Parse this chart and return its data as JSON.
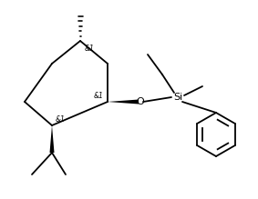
{
  "bg_color": "#ffffff",
  "line_color": "#000000",
  "line_width": 1.3,
  "font_size": 6.5
}
